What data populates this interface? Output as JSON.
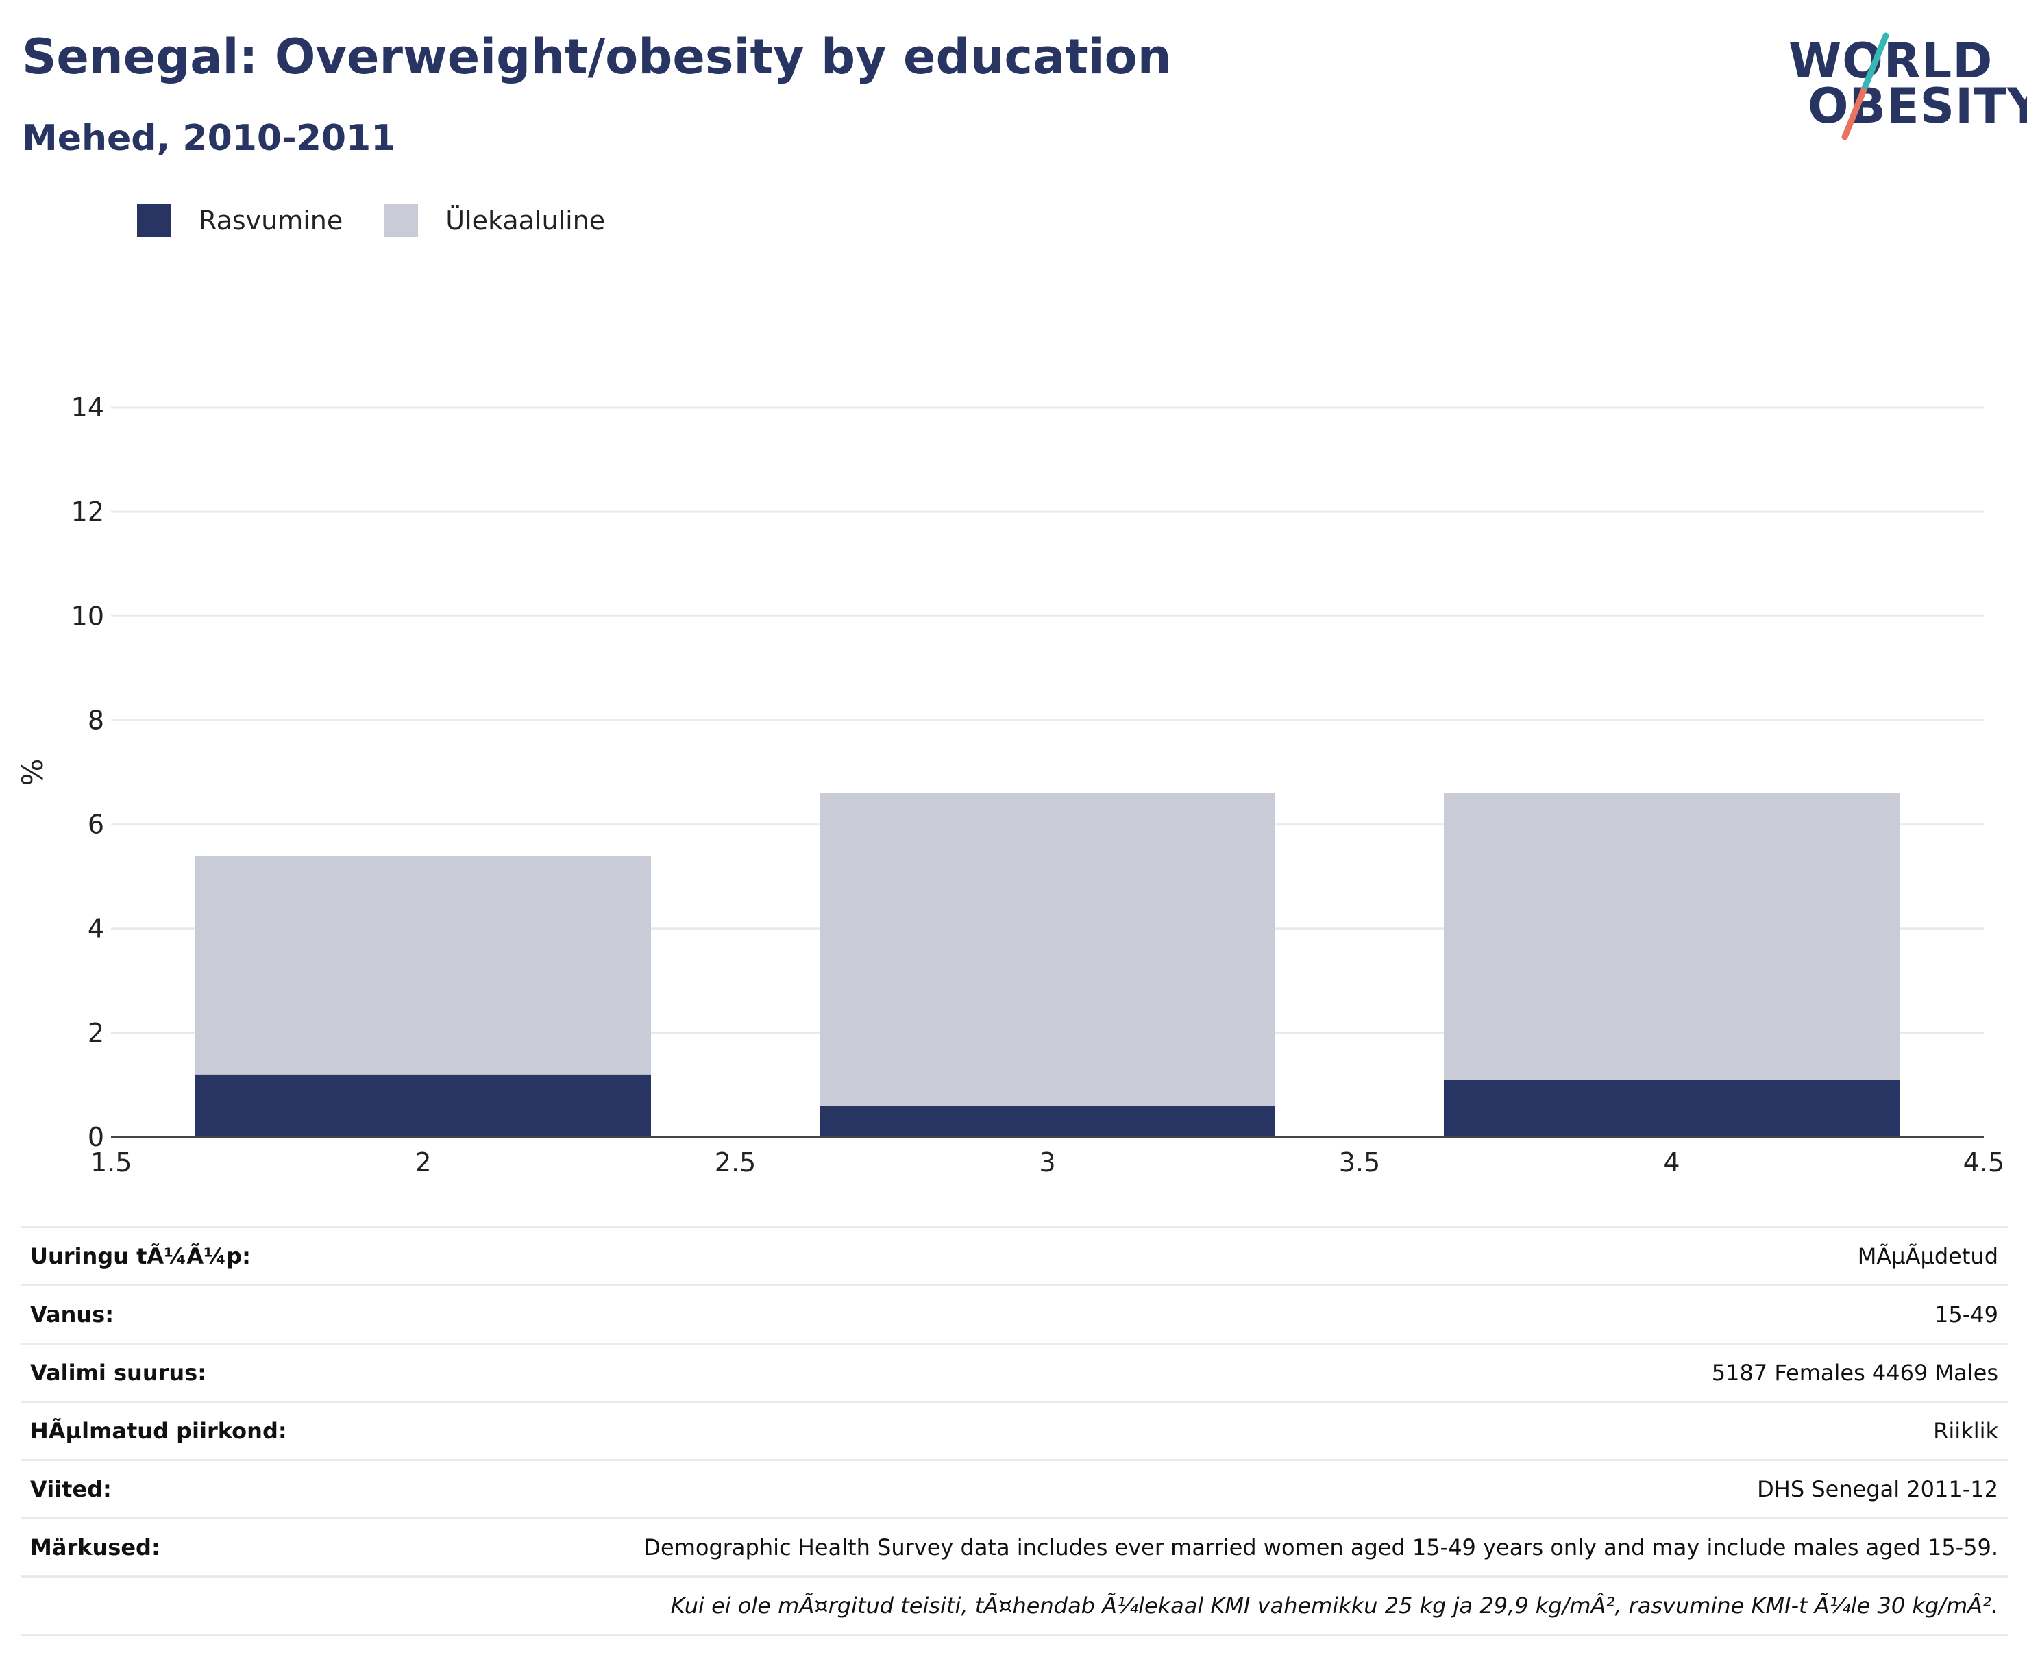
{
  "header": {
    "title": "Senegal: Overweight/obesity by education",
    "subtitle": "Mehed, 2010-2011"
  },
  "logo": {
    "line1": "WORLD",
    "line2": "OBESITY"
  },
  "legend": [
    {
      "label": "Rasvumine",
      "color": "#283562"
    },
    {
      "label": "Ülekaaluline",
      "color": "#c9cbd7"
    }
  ],
  "chart_data": {
    "type": "bar",
    "stacked": true,
    "x": [
      2,
      3,
      4
    ],
    "series": [
      {
        "name": "Rasvumine",
        "values": [
          1.2,
          0.6,
          1.1
        ],
        "color": "#283562"
      },
      {
        "name": "Ülekaaluline",
        "values": [
          4.2,
          6.0,
          5.5
        ],
        "color": "#c9cbd7"
      }
    ],
    "xlim": [
      1.5,
      4.5
    ],
    "xticks": [
      "1.5",
      "2",
      "2.5",
      "3",
      "3.5",
      "4",
      "4.5"
    ],
    "ylim": [
      0,
      14
    ],
    "yticks": [
      "0",
      "2",
      "4",
      "6",
      "8",
      "10",
      "12",
      "14"
    ],
    "ylabel": "%",
    "xlabel": "",
    "grid": true,
    "legend_position": "top-left"
  },
  "info": {
    "rows": [
      {
        "key": "Uuringu tÃ¼Ã¼p:",
        "value": "MÃµÃµdetud"
      },
      {
        "key": "Vanus:",
        "value": "15-49"
      },
      {
        "key": "Valimi suurus:",
        "value": "5187 Females 4469 Males"
      },
      {
        "key": "HÃµlmatud piirkond:",
        "value": "Riiklik"
      },
      {
        "key": "Viited:",
        "value": "DHS Senegal 2011-12"
      },
      {
        "key": "Märkused:",
        "value": "Demographic Health Survey data includes ever married women aged 15-49 years only and may include males aged 15-59."
      }
    ],
    "footnote": "Kui ei ole mÃ¤rgitud teisiti, tÃ¤hendab Ã¼lekaal KMI vahemikku 25 kg ja 29,9 kg/mÂ², rasvumine KMI-t Ã¼le 30 kg/mÂ²."
  }
}
